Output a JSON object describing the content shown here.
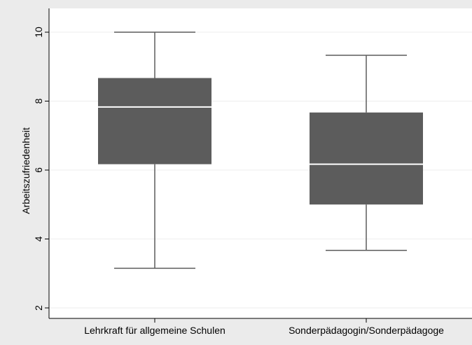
{
  "chart_data": {
    "type": "box",
    "ylabel": "Arbeitszufriedenheit",
    "ylim": [
      2,
      10
    ],
    "yticks": [
      2,
      4,
      6,
      8,
      10
    ],
    "grid": true,
    "categories": [
      "Lehrkraft für allgemeine Schulen",
      "Sonderpädagogin/Sonderpädagoge"
    ],
    "boxes": [
      {
        "category": "Lehrkraft für allgemeine Schulen",
        "whisker_low": 3.15,
        "q1": 6.17,
        "median": 7.83,
        "q3": 8.67,
        "whisker_high": 10.0
      },
      {
        "category": "Sonderpädagogin/Sonderpädagoge",
        "whisker_low": 3.67,
        "q1": 5.0,
        "median": 6.17,
        "q3": 7.67,
        "whisker_high": 9.33
      }
    ],
    "colors": {
      "background": "#ebebeb",
      "plot_area": "#ffffff",
      "box_fill": "#5c5c5c",
      "median": "#ffffff",
      "whisker": "#5c5c5c",
      "grid": "#eeeeee"
    }
  }
}
